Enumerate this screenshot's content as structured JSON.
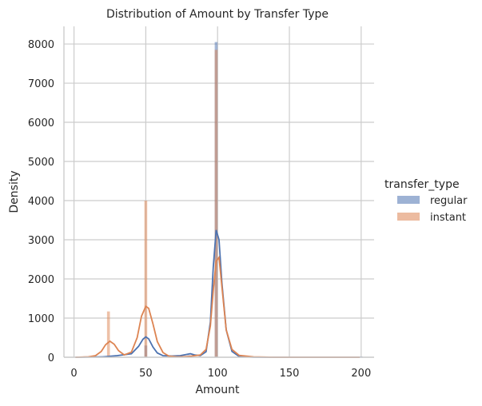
{
  "chart_data": {
    "type": "histogram",
    "title": "Distribution of Amount by Transfer Type",
    "xlabel": "Amount",
    "ylabel": "Density",
    "xlim": [
      -7,
      209
    ],
    "ylim": [
      0,
      8450
    ],
    "xticks": [
      0,
      50,
      100,
      150,
      200
    ],
    "yticks": [
      0,
      1000,
      2000,
      3000,
      4000,
      5000,
      6000,
      7000,
      8000
    ],
    "grid": true,
    "legend": {
      "title": "transfer_type",
      "placement": "right",
      "entries": [
        "regular",
        "instant"
      ]
    },
    "bar_width": 2,
    "series": [
      {
        "name": "regular",
        "color": "#4c72b0",
        "bars": [
          {
            "x": 50,
            "value": 300
          },
          {
            "x": 80,
            "value": 50
          },
          {
            "x": 99,
            "value": 8050
          },
          {
            "x": 200,
            "value": 20
          }
        ],
        "kde": [
          [
            1,
            0
          ],
          [
            20,
            10
          ],
          [
            30,
            40
          ],
          [
            40,
            90
          ],
          [
            45,
            280
          ],
          [
            48,
            460
          ],
          [
            50,
            520
          ],
          [
            52,
            470
          ],
          [
            55,
            260
          ],
          [
            58,
            110
          ],
          [
            62,
            40
          ],
          [
            68,
            30
          ],
          [
            74,
            40
          ],
          [
            78,
            70
          ],
          [
            81,
            90
          ],
          [
            84,
            60
          ],
          [
            88,
            40
          ],
          [
            92,
            140
          ],
          [
            95,
            900
          ],
          [
            97,
            2300
          ],
          [
            99,
            3250
          ],
          [
            101,
            3000
          ],
          [
            103,
            1900
          ],
          [
            106,
            700
          ],
          [
            110,
            150
          ],
          [
            115,
            20
          ],
          [
            125,
            5
          ],
          [
            140,
            0
          ],
          [
            199,
            0
          ]
        ]
      },
      {
        "name": "instant",
        "color": "#dd8452",
        "bars": [
          {
            "x": 24,
            "value": 1170
          },
          {
            "x": 50,
            "value": 4000
          },
          {
            "x": 99,
            "value": 7850
          }
        ],
        "kde": [
          [
            1,
            0
          ],
          [
            10,
            10
          ],
          [
            15,
            40
          ],
          [
            19,
            150
          ],
          [
            22,
            320
          ],
          [
            25,
            410
          ],
          [
            28,
            330
          ],
          [
            31,
            170
          ],
          [
            35,
            60
          ],
          [
            40,
            130
          ],
          [
            44,
            500
          ],
          [
            47,
            1050
          ],
          [
            50,
            1300
          ],
          [
            52,
            1250
          ],
          [
            55,
            850
          ],
          [
            58,
            400
          ],
          [
            62,
            120
          ],
          [
            66,
            30
          ],
          [
            72,
            10
          ],
          [
            80,
            20
          ],
          [
            88,
            60
          ],
          [
            92,
            200
          ],
          [
            95,
            800
          ],
          [
            97,
            1700
          ],
          [
            99,
            2450
          ],
          [
            101,
            2550
          ],
          [
            103,
            1800
          ],
          [
            106,
            700
          ],
          [
            110,
            200
          ],
          [
            115,
            50
          ],
          [
            125,
            10
          ],
          [
            140,
            0
          ],
          [
            199,
            0
          ]
        ]
      }
    ]
  }
}
